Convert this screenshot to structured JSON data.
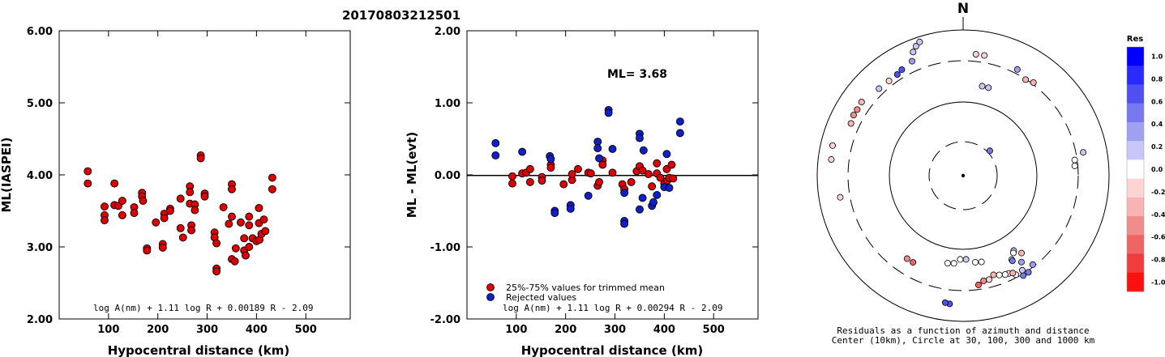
{
  "event_id": "20170803212501",
  "chart_data": [
    {
      "type": "scatter",
      "ylabel": "ML(IASPEI)",
      "xlabel": "Hypocentral distance (km)",
      "xlim": [
        0,
        590
      ],
      "ylim": [
        2.0,
        6.0
      ],
      "xticks": [
        "100",
        "200",
        "300",
        "400",
        "500"
      ],
      "yticks": [
        "2.00",
        "3.00",
        "4.00",
        "5.00",
        "6.00"
      ],
      "formula": "log A(nm) + 1.11 log R + 0.00189 R - 2.09",
      "series": [
        {
          "color": "#dd0000",
          "points": [
            [
              58,
              4.05
            ],
            [
              58,
              3.88
            ],
            [
              92,
              3.56
            ],
            [
              92,
              3.44
            ],
            [
              92,
              3.37
            ],
            [
              112,
              3.88
            ],
            [
              112,
              3.58
            ],
            [
              120,
              3.57
            ],
            [
              128,
              3.64
            ],
            [
              128,
              3.44
            ],
            [
              152,
              3.55
            ],
            [
              152,
              3.47
            ],
            [
              168,
              3.75
            ],
            [
              168,
              3.7
            ],
            [
              170,
              3.64
            ],
            [
              178,
              2.98
            ],
            [
              178,
              2.95
            ],
            [
              196,
              3.34
            ],
            [
              210,
              3.04
            ],
            [
              210,
              2.99
            ],
            [
              213,
              3.46
            ],
            [
              213,
              3.4
            ],
            [
              225,
              3.53
            ],
            [
              225,
              3.5
            ],
            [
              246,
              3.67
            ],
            [
              246,
              3.26
            ],
            [
              251,
              3.13
            ],
            [
              265,
              3.84
            ],
            [
              265,
              3.76
            ],
            [
              265,
              3.6
            ],
            [
              268,
              3.3
            ],
            [
              268,
              3.23
            ],
            [
              275,
              3.59
            ],
            [
              275,
              3.51
            ],
            [
              287,
              4.27
            ],
            [
              287,
              4.23
            ],
            [
              295,
              3.74
            ],
            [
              295,
              3.7
            ],
            [
              315,
              3.2
            ],
            [
              315,
              3.13
            ],
            [
              319,
              3.05
            ],
            [
              319,
              2.7
            ],
            [
              319,
              2.66
            ],
            [
              333,
              3.55
            ],
            [
              344,
              3.32
            ],
            [
              350,
              3.87
            ],
            [
              350,
              3.8
            ],
            [
              350,
              3.42
            ],
            [
              350,
              2.83
            ],
            [
              356,
              2.8
            ],
            [
              358,
              2.98
            ],
            [
              368,
              3.34
            ],
            [
              375,
              3.12
            ],
            [
              375,
              2.95
            ],
            [
              378,
              2.88
            ],
            [
              385,
              3.42
            ],
            [
              385,
              3.3
            ],
            [
              385,
              3.0
            ],
            [
              392,
              3.12
            ],
            [
              400,
              3.08
            ],
            [
              405,
              3.54
            ],
            [
              405,
              3.33
            ],
            [
              406,
              3.1
            ],
            [
              410,
              3.18
            ],
            [
              415,
              3.38
            ],
            [
              418,
              3.22
            ],
            [
              432,
              3.96
            ],
            [
              432,
              3.8
            ]
          ]
        }
      ]
    },
    {
      "type": "scatter",
      "ylabel": "ML - ML(evt)",
      "xlabel": "Hypocentral distance (km)",
      "xlim": [
        0,
        590
      ],
      "ylim": [
        -2.0,
        2.0
      ],
      "xticks": [
        "100",
        "200",
        "300",
        "400",
        "500"
      ],
      "yticks": [
        "-2.00",
        "-1.00",
        "0.00",
        "1.00",
        "2.00"
      ],
      "ml_label": "ML= 3.68",
      "formula": "log A(nm) + 1.11 log R + 0.00294 R - 2.09",
      "legend": [
        "25%-75% values for trimmed mean",
        "Rejected values"
      ],
      "series": [
        {
          "name": "25%-75% values for trimmed mean",
          "color": "#dd0000",
          "points": [
            [
              92,
              -0.02
            ],
            [
              92,
              -0.12
            ],
            [
              112,
              0.02
            ],
            [
              120,
              0.03
            ],
            [
              128,
              -0.1
            ],
            [
              128,
              0.08
            ],
            [
              152,
              -0.03
            ],
            [
              152,
              -0.08
            ],
            [
              170,
              0.14
            ],
            [
              170,
              0.1
            ],
            [
              196,
              -0.13
            ],
            [
              213,
              -0.07
            ],
            [
              213,
              0.01
            ],
            [
              225,
              0.08
            ],
            [
              246,
              0.03
            ],
            [
              251,
              0.02
            ],
            [
              265,
              -0.15
            ],
            [
              268,
              -0.1
            ],
            [
              275,
              0.2
            ],
            [
              275,
              0.14
            ],
            [
              295,
              0.03
            ],
            [
              315,
              -0.13
            ],
            [
              319,
              -0.2
            ],
            [
              333,
              -0.1
            ],
            [
              344,
              0.05
            ],
            [
              350,
              0.12
            ],
            [
              356,
              0.06
            ],
            [
              368,
              0.01
            ],
            [
              375,
              -0.16
            ],
            [
              385,
              0.16
            ],
            [
              385,
              0.02
            ],
            [
              392,
              -0.04
            ],
            [
              400,
              -0.12
            ],
            [
              405,
              0.08
            ],
            [
              406,
              -0.08
            ],
            [
              410,
              -0.04
            ],
            [
              415,
              0.14
            ],
            [
              418,
              -0.05
            ]
          ]
        },
        {
          "name": "Rejected values",
          "color": "#1020c8",
          "points": [
            [
              58,
              0.44
            ],
            [
              58,
              0.27
            ],
            [
              112,
              0.32
            ],
            [
              168,
              0.26
            ],
            [
              170,
              0.22
            ],
            [
              178,
              -0.5
            ],
            [
              178,
              -0.53
            ],
            [
              210,
              -0.42
            ],
            [
              210,
              -0.47
            ],
            [
              246,
              -0.29
            ],
            [
              265,
              0.46
            ],
            [
              265,
              0.37
            ],
            [
              268,
              0.23
            ],
            [
              287,
              0.9
            ],
            [
              287,
              0.86
            ],
            [
              295,
              0.36
            ],
            [
              319,
              -0.64
            ],
            [
              319,
              -0.68
            ],
            [
              319,
              -0.25
            ],
            [
              350,
              0.57
            ],
            [
              350,
              0.51
            ],
            [
              350,
              -0.48
            ],
            [
              356,
              -0.32
            ],
            [
              358,
              0.34
            ],
            [
              375,
              -0.43
            ],
            [
              378,
              -0.38
            ],
            [
              385,
              -0.28
            ],
            [
              400,
              -0.17
            ],
            [
              405,
              0.29
            ],
            [
              410,
              -0.18
            ],
            [
              432,
              0.74
            ],
            [
              432,
              0.58
            ]
          ]
        }
      ]
    },
    {
      "type": "polar-scatter",
      "north_label": "N",
      "caption_line1": "Residuals as a function of azimuth and distance",
      "caption_line2": "Center (10km), Circle at 30, 100, 300 and 1000 km",
      "colorbar": {
        "title": "Res",
        "ticks": [
          "1.0",
          "0.8",
          "0.6",
          "0.4",
          "0.2",
          "0.0",
          "-0.2",
          "-0.4",
          "-0.6",
          "-0.8",
          "-1.0"
        ],
        "colors": [
          "#0000ff",
          "#2a2aff",
          "#5050f0",
          "#7878f0",
          "#a0a0f0",
          "#c8c8f8",
          "#ffffff",
          "#fcd4d4",
          "#f8b4b4",
          "#f08c8c",
          "#f06464",
          "#f03c3c",
          "#ff1010"
        ]
      },
      "points": [
        {
          "az": 6,
          "r": 0.838,
          "res": -0.15
        },
        {
          "az": 10,
          "r": 0.838,
          "res": -0.1
        },
        {
          "az": 12,
          "r": 0.628,
          "res": 0.22
        },
        {
          "az": 16,
          "r": 0.628,
          "res": 0.18
        },
        {
          "az": 27,
          "r": 0.818,
          "res": 0.3
        },
        {
          "az": 33,
          "r": 0.786,
          "res": -0.28
        },
        {
          "az": 37,
          "r": 0.8,
          "res": -0.32
        },
        {
          "az": 47,
          "r": 0.25,
          "res": 0.48
        },
        {
          "az": 79,
          "r": 0.838,
          "res": 0.2
        },
        {
          "az": 82,
          "r": 0.772,
          "res": 0.05
        },
        {
          "az": 85,
          "r": 0.768,
          "res": 0.02
        },
        {
          "az": 146,
          "r": 0.62,
          "res": 0.1
        },
        {
          "az": 147,
          "r": 0.632,
          "res": 0.05
        },
        {
          "az": 150,
          "r": 0.665,
          "res": 0.0
        },
        {
          "az": 150,
          "r": 0.675,
          "res": 0.5
        },
        {
          "az": 146,
          "r": 0.8,
          "res": 0.55
        },
        {
          "az": 149,
          "r": 0.8,
          "res": 0.45
        },
        {
          "az": 146,
          "r": 0.715,
          "res": 0.4
        },
        {
          "az": 142,
          "r": 0.775,
          "res": 0.3
        },
        {
          "az": 148,
          "r": 0.765,
          "res": 0.1
        },
        {
          "az": 152,
          "r": 0.77,
          "res": 0.0
        },
        {
          "az": 155,
          "r": 0.74,
          "res": -0.2
        },
        {
          "az": 143,
          "r": 0.665,
          "res": -0.3
        },
        {
          "az": 153,
          "r": 0.75,
          "res": -0.4
        },
        {
          "az": 157,
          "r": 0.737,
          "res": 0.05
        },
        {
          "az": 160,
          "r": 0.725,
          "res": 0.0
        },
        {
          "az": 163,
          "r": 0.712,
          "res": -0.25
        },
        {
          "az": 166,
          "r": 0.735,
          "res": -0.15
        },
        {
          "az": 169,
          "r": 0.735,
          "res": -0.55
        },
        {
          "az": 172,
          "r": 0.757,
          "res": -0.65
        },
        {
          "az": 168,
          "r": 0.605,
          "res": 0.05
        },
        {
          "az": 172,
          "r": 0.6,
          "res": 0.0
        },
        {
          "az": 178,
          "r": 0.575,
          "res": 0.1
        },
        {
          "az": 182,
          "r": 0.575,
          "res": -0.05
        },
        {
          "az": 186,
          "r": 0.605,
          "res": 0.0
        },
        {
          "az": 190,
          "r": 0.61,
          "res": 0.05
        },
        {
          "az": 186,
          "r": 0.885,
          "res": 0.65
        },
        {
          "az": 188,
          "r": 0.88,
          "res": 0.75
        },
        {
          "az": 210,
          "r": 0.687,
          "res": -0.6
        },
        {
          "az": 214,
          "r": 0.687,
          "res": -0.5
        },
        {
          "az": 260,
          "r": 0.855,
          "res": -0.15
        },
        {
          "az": 277,
          "r": 0.91,
          "res": -0.1
        },
        {
          "az": 283,
          "r": 0.918,
          "res": -0.15
        },
        {
          "az": 295,
          "r": 0.848,
          "res": -0.4
        },
        {
          "az": 299,
          "r": 0.858,
          "res": -0.5
        },
        {
          "az": 302,
          "r": 0.856,
          "res": -0.45
        },
        {
          "az": 306,
          "r": 0.86,
          "res": -0.35
        },
        {
          "az": 316,
          "r": 0.83,
          "res": 0.2
        },
        {
          "az": 322,
          "r": 0.825,
          "res": -0.15
        },
        {
          "az": 327,
          "r": 0.828,
          "res": 0.7
        },
        {
          "az": 330,
          "r": 0.84,
          "res": 0.6
        },
        {
          "az": 336,
          "r": 0.86,
          "res": 0.3
        },
        {
          "az": 338,
          "r": 0.915,
          "res": 0.2
        },
        {
          "az": 340,
          "r": 0.945,
          "res": 0.15
        },
        {
          "az": 342,
          "r": 0.965,
          "res": 0.25
        }
      ]
    }
  ]
}
